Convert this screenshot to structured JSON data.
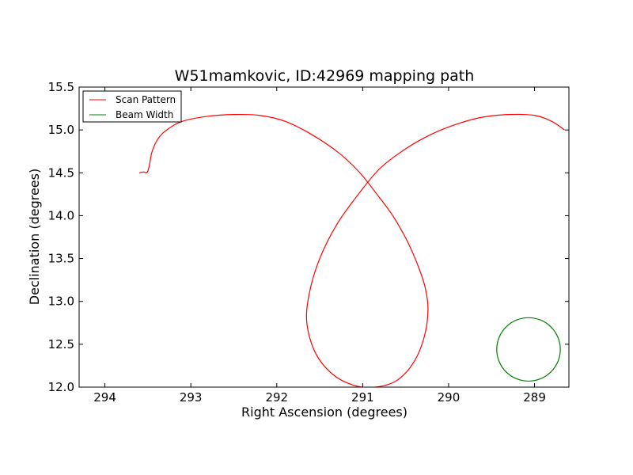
{
  "chart_data": {
    "type": "line",
    "title": "W51mamkovic, ID:42969 mapping path",
    "xlabel": "Right Ascension (degrees)",
    "ylabel": "Declination (degrees)",
    "xlim": [
      294.3,
      288.6
    ],
    "ylim": [
      12.0,
      15.5
    ],
    "x_reversed": true,
    "grid": false,
    "legend_position": "top-left",
    "xticks": [
      "294",
      "293",
      "292",
      "291",
      "290",
      "289"
    ],
    "xtick_values": [
      294,
      293,
      292,
      291,
      290,
      289
    ],
    "yticks": [
      "12.0",
      "12.5",
      "13.0",
      "13.5",
      "14.0",
      "14.5",
      "15.0",
      "15.5"
    ],
    "ytick_values": [
      12.0,
      12.5,
      13.0,
      13.5,
      14.0,
      14.5,
      15.0,
      15.5
    ],
    "series": [
      {
        "name": "Scan Pattern",
        "color": "#ff0000",
        "kind": "path",
        "x": [
          293.6,
          293.55,
          293.52,
          293.5,
          293.48,
          293.45,
          293.38,
          293.28,
          293.1,
          292.8,
          292.5,
          292.2,
          291.9,
          291.6,
          291.3,
          291.05,
          290.85,
          290.65,
          290.48,
          290.35,
          290.27,
          290.24,
          290.28,
          290.4,
          290.6,
          290.85,
          291.1,
          291.35,
          291.55,
          291.65,
          291.62,
          291.5,
          291.3,
          291.05,
          290.8,
          290.5,
          290.2,
          289.9,
          289.6,
          289.3,
          289.0,
          288.8,
          288.65
        ],
        "y": [
          14.5,
          14.51,
          14.5,
          14.52,
          14.6,
          14.75,
          14.9,
          15.0,
          15.1,
          15.16,
          15.18,
          15.17,
          15.1,
          14.95,
          14.75,
          14.52,
          14.27,
          14.0,
          13.7,
          13.4,
          13.15,
          12.9,
          12.6,
          12.3,
          12.08,
          12.0,
          12.02,
          12.15,
          12.4,
          12.75,
          13.1,
          13.5,
          13.9,
          14.25,
          14.55,
          14.78,
          14.95,
          15.07,
          15.15,
          15.18,
          15.17,
          15.1,
          15.0
        ]
      },
      {
        "name": "Beam Width",
        "color": "#008000",
        "kind": "circle",
        "center": [
          289.07,
          12.44
        ],
        "radius": 0.37
      }
    ]
  }
}
